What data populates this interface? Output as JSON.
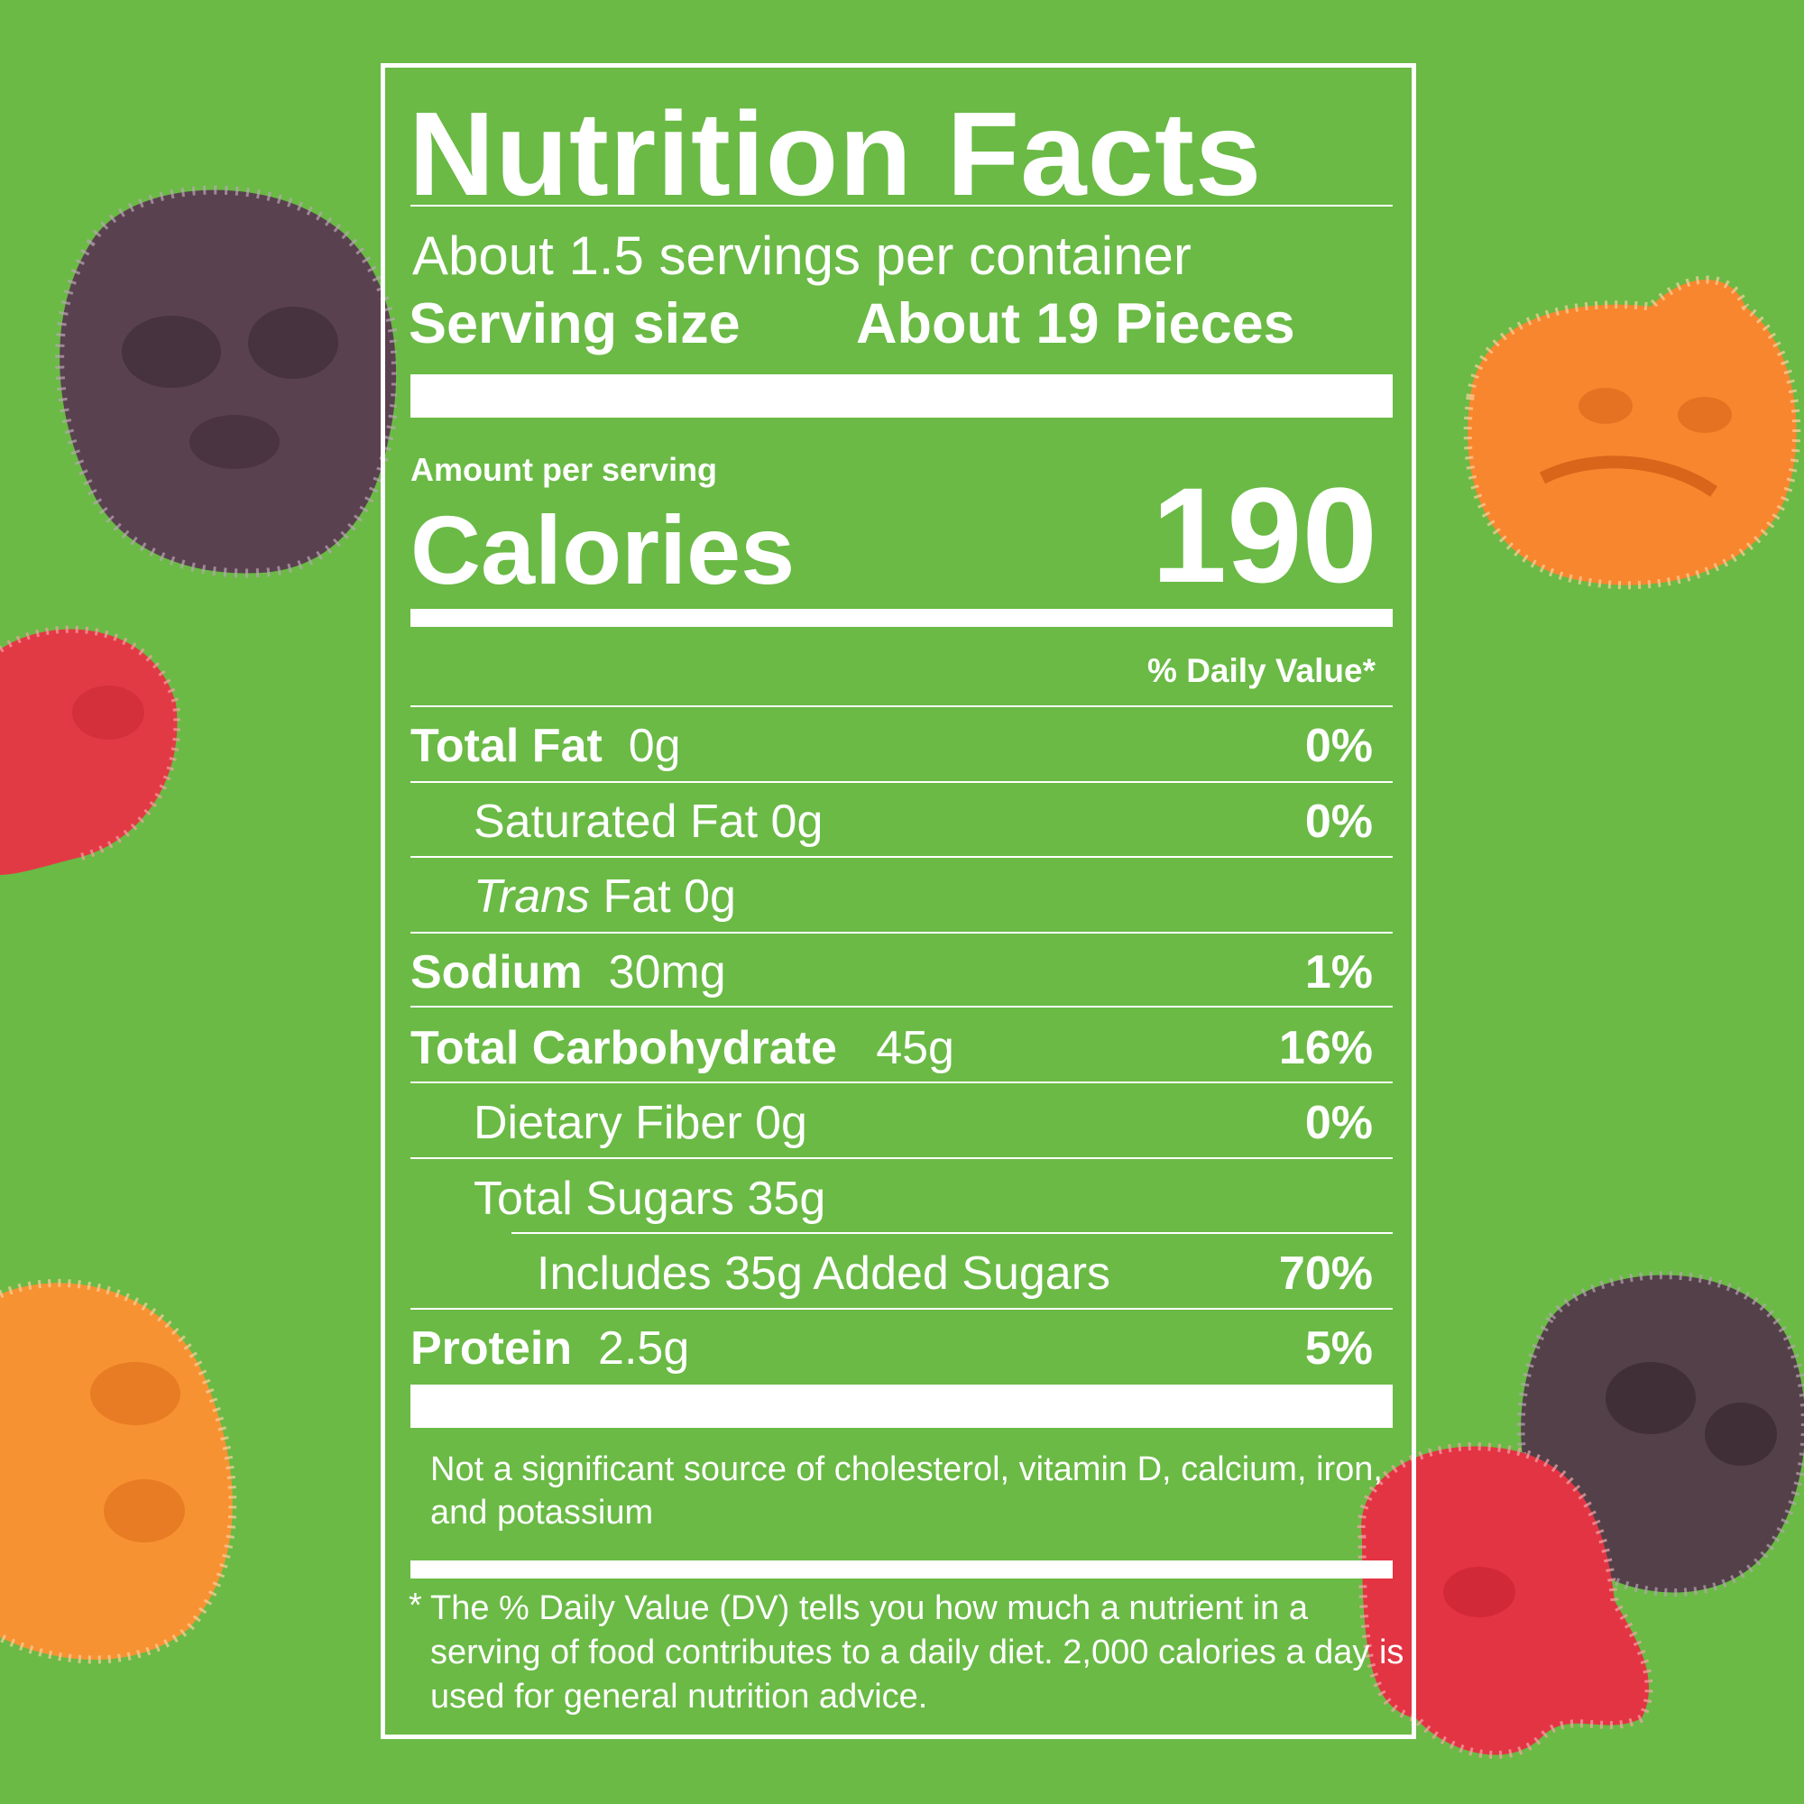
{
  "colors": {
    "background": "#6aba45",
    "ink": "#ffffff"
  },
  "label": {
    "title": "Nutrition Facts",
    "servings_per_container": "About 1.5 servings per container",
    "serving_size_label": "Serving size",
    "serving_size_value": "About 19 Pieces",
    "amount_per_serving": "Amount per serving",
    "calories_label": "Calories",
    "calories_value": "190",
    "daily_value_header": "% Daily Value*",
    "nutrients": [
      {
        "name": "Total Fat",
        "amount": "0g",
        "dv": "0%"
      },
      {
        "name": "Saturated Fat",
        "amount": "0g",
        "dv": "0%"
      },
      {
        "name": "Trans",
        "amount": "Fat 0g",
        "dv": ""
      },
      {
        "name": "Sodium",
        "amount": "30mg",
        "dv": "1%"
      },
      {
        "name": "Total Carbohydrate",
        "amount": "45g",
        "dv": "16%"
      },
      {
        "name": "Dietary Fiber",
        "amount": "0g",
        "dv": "0%"
      },
      {
        "name": "Total Sugars",
        "amount": "35g",
        "dv": ""
      },
      {
        "name": "Includes 35g Added Sugars",
        "amount": "",
        "dv": "70%"
      },
      {
        "name": "Protein",
        "amount": "2.5g",
        "dv": "5%"
      }
    ],
    "not_significant": "Not a significant source of cholesterol, vitamin D, calcium, iron, and potassium",
    "footnote_star": "*",
    "footnote": "The % Daily Value (DV) tells you how much a nutrient in a serving of food contributes to a daily diet. 2,000 calories a day is used for general nutrition advice."
  },
  "decorations": [
    {
      "name": "purple-skull-candy",
      "color": "#5a4150"
    },
    {
      "name": "red-candy",
      "color": "#e23a45"
    },
    {
      "name": "orange-pumpkin-candy",
      "color": "#f7862e"
    },
    {
      "name": "orange-skull-candy",
      "color": "#f79232"
    },
    {
      "name": "purple-skull-candy-2",
      "color": "#534049"
    },
    {
      "name": "red-ghost-candy",
      "color": "#e33443"
    }
  ]
}
